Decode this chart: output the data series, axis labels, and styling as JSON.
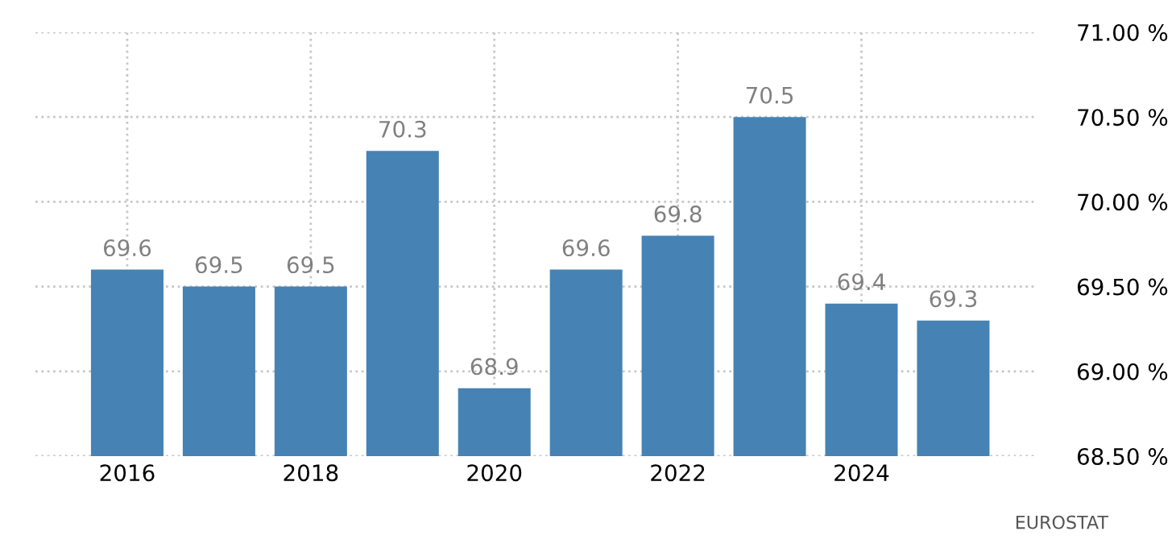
{
  "chart_data": {
    "type": "bar",
    "x": [
      2016,
      2017,
      2018,
      2019,
      2020,
      2021,
      2022,
      2023,
      2024,
      2025
    ],
    "values": [
      69.6,
      69.5,
      69.5,
      70.3,
      68.9,
      69.6,
      69.8,
      70.5,
      69.4,
      69.3
    ],
    "color": "#4682b4",
    "xlim": [
      2015,
      2025.9
    ],
    "xticks": [
      2016,
      2018,
      2020,
      2022,
      2024
    ],
    "ylim": [
      68.5,
      71.0
    ],
    "yticks": [
      {
        "value": 68.5,
        "label": "68.50 %"
      },
      {
        "value": 69.0,
        "label": "69.00 %"
      },
      {
        "value": 69.5,
        "label": "69.50 %"
      },
      {
        "value": 70.0,
        "label": "70.00 %"
      },
      {
        "value": 70.5,
        "label": "70.50 %"
      },
      {
        "value": 71.0,
        "label": "71.00 %"
      }
    ],
    "grid": true,
    "data_labels": true,
    "annotations": [
      "EUROSTAT"
    ]
  }
}
